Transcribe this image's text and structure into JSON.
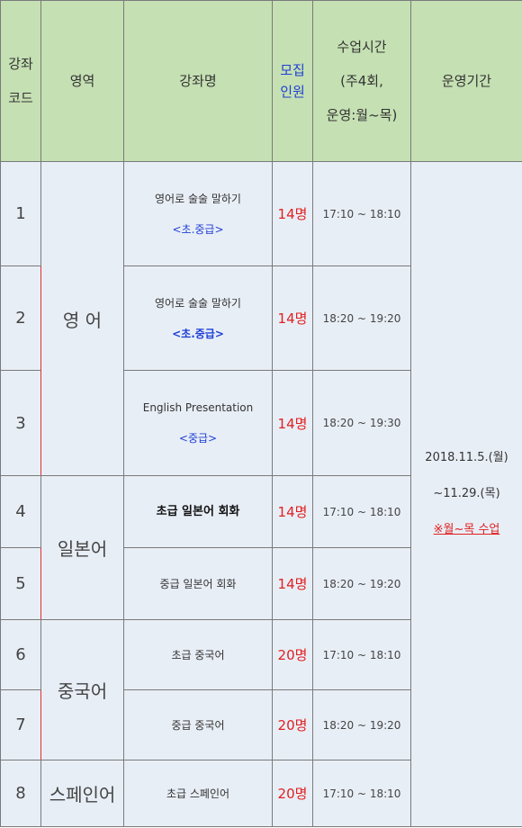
{
  "header": {
    "code": [
      "강좌",
      "코드"
    ],
    "area": "영역",
    "course": "강좌명",
    "recruit": [
      "모집",
      "인원"
    ],
    "time": [
      "수업시간",
      "(주4회,",
      "운영:월~목)"
    ],
    "period": "운영기간"
  },
  "areas": {
    "english": "영 어",
    "japanese": "일본어",
    "chinese": "중국어",
    "spanish": "스페인어"
  },
  "rows": [
    {
      "code": "1",
      "name": "영어로 술술 말하기",
      "level": "<초.중급>",
      "count": "14명",
      "time": "17:10 ~ 18:10"
    },
    {
      "code": "2",
      "name": "영어로 술술 말하기",
      "level": "<초.중급>",
      "count": "14명",
      "time": "18:20 ~ 19:20"
    },
    {
      "code": "3",
      "name": "English Presentation",
      "level": "<중급>",
      "count": "14명",
      "time": "18:20 ~ 19:30"
    },
    {
      "code": "4",
      "name": "초급 일본어 회화",
      "level": "",
      "count": "14명",
      "time": "17:10 ~ 18:10"
    },
    {
      "code": "5",
      "name": "중급 일본어 회화",
      "level": "",
      "count": "14명",
      "time": "18:20 ~ 19:20"
    },
    {
      "code": "6",
      "name": "초급 중국어",
      "level": "",
      "count": "20명",
      "time": "17:10 ~ 18:10"
    },
    {
      "code": "7",
      "name": "중급 중국어",
      "level": "",
      "count": "20명",
      "time": "18:20 ~ 19:20"
    },
    {
      "code": "8",
      "name": "초급 스페인어",
      "level": "",
      "count": "20명",
      "time": "17:10 ~ 18:10"
    }
  ],
  "period": {
    "start": "2018.11.5.(월)",
    "end": "~11.29.(목)",
    "note": "※월~목 수업"
  },
  "colors": {
    "header_bg": "#c5e0b3",
    "body_bg": "#e8eef6",
    "count_red": "#e02020",
    "level_blue": "#1f3fd6"
  }
}
